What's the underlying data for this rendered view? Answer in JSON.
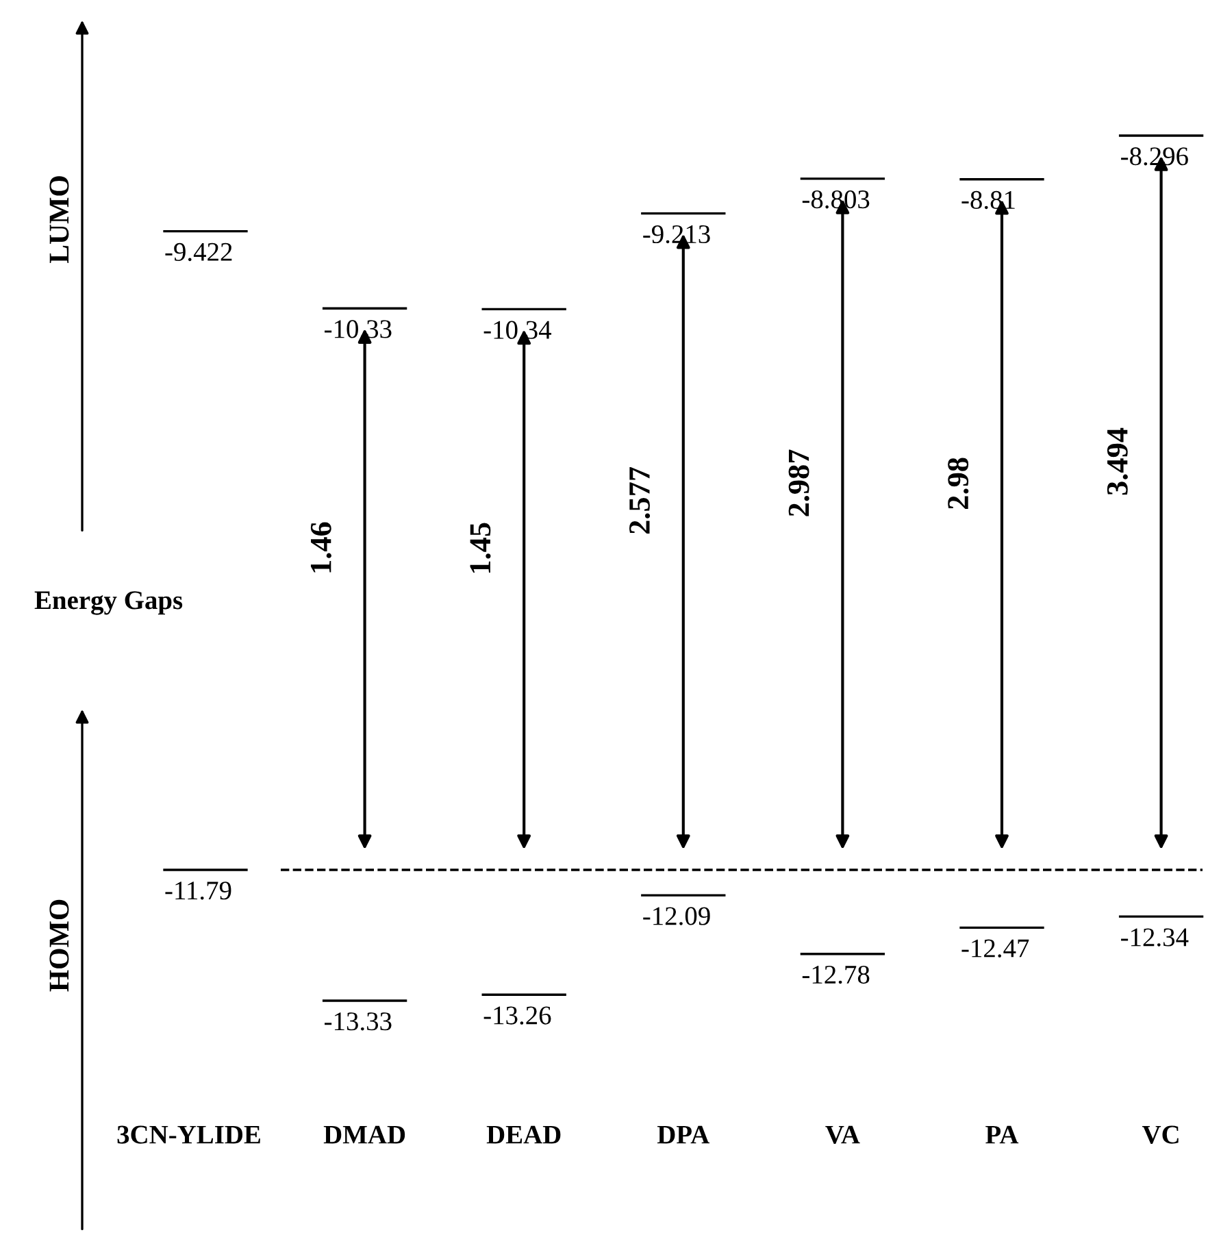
{
  "chart_data": {
    "type": "other",
    "categories": [
      "3CN-YLIDE",
      "DMAD",
      "DEAD",
      "DPA",
      "VA",
      "PA",
      "VC"
    ],
    "series": [
      {
        "name": "LUMO",
        "values": [
          -9.422,
          -10.33,
          -10.34,
          -9.213,
          -8.803,
          -8.81,
          -8.296
        ]
      },
      {
        "name": "HOMO",
        "values": [
          -11.79,
          -13.33,
          -13.26,
          -12.09,
          -12.78,
          -12.47,
          -12.34
        ]
      },
      {
        "name": "Energy Gaps",
        "values": [
          null,
          1.46,
          1.45,
          2.577,
          2.987,
          2.98,
          3.494
        ]
      }
    ],
    "data_labels": true
  }
}
